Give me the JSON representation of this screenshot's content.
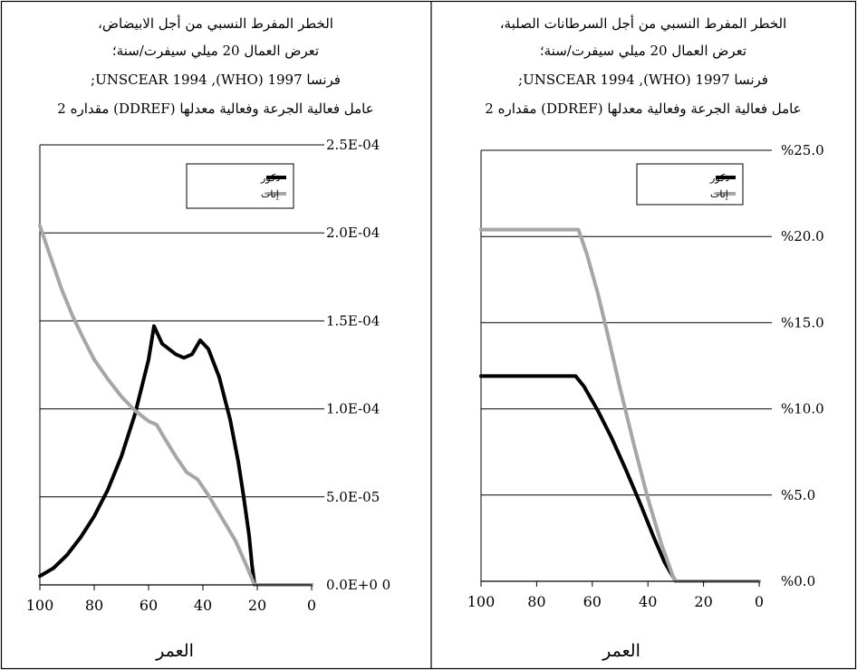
{
  "chart_data": [
    {
      "type": "line",
      "title_lines": [
        "الخطر المفرط النسبي من أجل الابيضاض،",
        "تعرض العمال 20 ميلي سيفرت/سنة؛",
        "فرنسا 1997 (WHO), UNSCEAR 1994;",
        "عامل فعالية الجرعة وفعالية معدلها (DDREF) مقداره 2"
      ],
      "xlabel": "العمر",
      "xlim": [
        100,
        0
      ],
      "xticks": [
        "100",
        "80",
        "60",
        "40",
        "20",
        "0"
      ],
      "xtick_values": [
        100,
        80,
        60,
        40,
        20,
        0
      ],
      "ylim": [
        0,
        0.00025
      ],
      "yticks": [
        "0.0E+0 0",
        "5.0E-05",
        "1.0E-04",
        "1.5E-04",
        "2.0E-04",
        "2.5E-04"
      ],
      "ytick_values": [
        0,
        5e-05,
        0.0001,
        0.00015,
        0.0002,
        0.00025
      ],
      "grid": true,
      "legend_position": "top-right",
      "series": [
        {
          "name": "ذكور",
          "color": "#000000",
          "points": [
            [
              100,
              5e-06
            ],
            [
              95,
              9.5e-06
            ],
            [
              90,
              1.7e-05
            ],
            [
              85,
              2.7e-05
            ],
            [
              80,
              3.9e-05
            ],
            [
              75,
              5.4e-05
            ],
            [
              70,
              7.3e-05
            ],
            [
              65,
              9.7e-05
            ],
            [
              60,
              0.000128
            ],
            [
              58,
              0.000147
            ],
            [
              55,
              0.000137
            ],
            [
              50,
              0.000131
            ],
            [
              47,
              0.000129
            ],
            [
              44,
              0.000131
            ],
            [
              41,
              0.000139
            ],
            [
              38,
              0.000134
            ],
            [
              34,
              0.000118
            ],
            [
              30,
              9.4e-05
            ],
            [
              27,
              7e-05
            ],
            [
              25,
              5e-05
            ],
            [
              23,
              2.8e-05
            ],
            [
              22,
              1.2e-05
            ],
            [
              21,
              0
            ],
            [
              20,
              0
            ],
            [
              0,
              0
            ]
          ]
        },
        {
          "name": "إناث",
          "color": "#a6a6a6",
          "points": [
            [
              100,
              0.000204
            ],
            [
              96,
              0.000186
            ],
            [
              92,
              0.000168
            ],
            [
              88,
              0.000153
            ],
            [
              84,
              0.00014
            ],
            [
              80,
              0.000128
            ],
            [
              75,
              0.000117
            ],
            [
              70,
              0.000107
            ],
            [
              65,
              9.9e-05
            ],
            [
              60,
              9.3e-05
            ],
            [
              57,
              9.1e-05
            ],
            [
              54,
              8.3e-05
            ],
            [
              50,
              7.3e-05
            ],
            [
              46,
              6.4e-05
            ],
            [
              44,
              6.2e-05
            ],
            [
              42,
              6e-05
            ],
            [
              38,
              5.1e-05
            ],
            [
              33,
              3.8e-05
            ],
            [
              28,
              2.5e-05
            ],
            [
              24,
              1.1e-05
            ],
            [
              21,
              0
            ],
            [
              0,
              0
            ]
          ]
        }
      ]
    },
    {
      "type": "line",
      "title_lines": [
        "الخطر المفرط النسبي من أجل السرطانات الصلبة،",
        "تعرض العمال 20 ميلي سيفرت/سنة؛",
        "فرنسا 1997 (WHO), UNSCEAR 1994;",
        "عامل فعالية الجرعة وفعالية معدلها (DDREF) مقداره 2"
      ],
      "xlabel": "العمر",
      "xlim": [
        100,
        0
      ],
      "xticks": [
        "100",
        "80",
        "60",
        "40",
        "20",
        "0"
      ],
      "xtick_values": [
        100,
        80,
        60,
        40,
        20,
        0
      ],
      "ylim": [
        0,
        25
      ],
      "yticks": [
        "%0.0",
        "%5.0",
        "%10.0",
        "%15.0",
        "%20.0",
        "%25.0"
      ],
      "ytick_values": [
        0,
        5,
        10,
        15,
        20,
        25
      ],
      "grid": true,
      "legend_position": "top-right",
      "series": [
        {
          "name": "ذكور",
          "color": "#000000",
          "points": [
            [
              100,
              11.9
            ],
            [
              66,
              11.9
            ],
            [
              63,
              11.3
            ],
            [
              58,
              9.9
            ],
            [
              53,
              8.3
            ],
            [
              48,
              6.5
            ],
            [
              43,
              4.6
            ],
            [
              38,
              2.6
            ],
            [
              34,
              1.1
            ],
            [
              30,
              0
            ],
            [
              0,
              0
            ]
          ]
        },
        {
          "name": "إناث",
          "color": "#a6a6a6",
          "points": [
            [
              100,
              20.4
            ],
            [
              65,
              20.4
            ],
            [
              62,
              19.0
            ],
            [
              58,
              16.7
            ],
            [
              54,
              14.0
            ],
            [
              50,
              11.2
            ],
            [
              45,
              7.9
            ],
            [
              40,
              4.8
            ],
            [
              35,
              2.1
            ],
            [
              31,
              0.3
            ],
            [
              30,
              0
            ],
            [
              0,
              0
            ]
          ]
        }
      ]
    }
  ]
}
